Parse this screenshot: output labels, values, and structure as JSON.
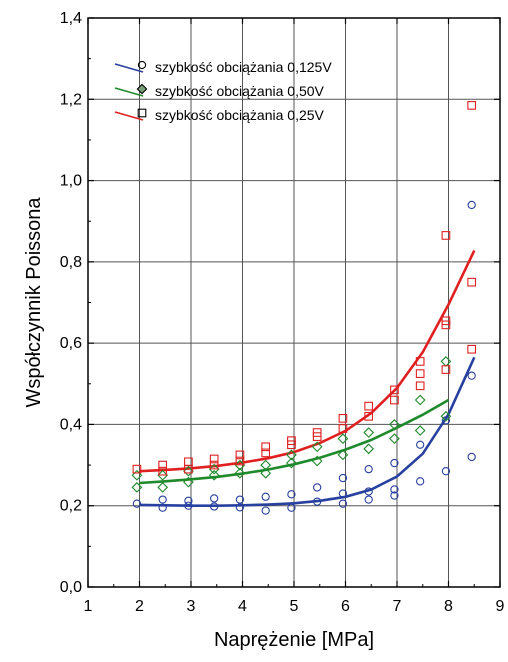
{
  "chart_data": {
    "type": "scatter",
    "xlabel": "Naprężenie [MPa]",
    "ylabel": "Współczynnik Poissona",
    "xlim": [
      1,
      9
    ],
    "ylim": [
      0.0,
      1.4
    ],
    "xticks": [
      1,
      2,
      3,
      4,
      5,
      6,
      7,
      8,
      9
    ],
    "yticks": [
      "0,0",
      "0,2",
      "0,4",
      "0,6",
      "0,8",
      "1,0",
      "1,2",
      "1,4"
    ],
    "ytick_values": [
      0.0,
      0.2,
      0.4,
      0.6,
      0.8,
      1.0,
      1.2,
      1.4
    ],
    "grid": true,
    "legend_position": "top-left",
    "series": [
      {
        "name": "szybkość obciążania 0,125V",
        "color": "#2840a0",
        "marker": "circle",
        "points": [
          [
            1.95,
            0.205
          ],
          [
            2.45,
            0.195
          ],
          [
            2.45,
            0.215
          ],
          [
            2.95,
            0.2
          ],
          [
            2.95,
            0.212
          ],
          [
            3.45,
            0.198
          ],
          [
            3.45,
            0.218
          ],
          [
            3.95,
            0.196
          ],
          [
            3.95,
            0.215
          ],
          [
            4.45,
            0.188
          ],
          [
            4.45,
            0.222
          ],
          [
            4.95,
            0.195
          ],
          [
            4.95,
            0.228
          ],
          [
            5.45,
            0.21
          ],
          [
            5.45,
            0.245
          ],
          [
            5.95,
            0.205
          ],
          [
            5.95,
            0.23
          ],
          [
            5.95,
            0.268
          ],
          [
            6.45,
            0.215
          ],
          [
            6.45,
            0.235
          ],
          [
            6.45,
            0.29
          ],
          [
            6.95,
            0.225
          ],
          [
            6.95,
            0.24
          ],
          [
            6.95,
            0.305
          ],
          [
            7.45,
            0.26
          ],
          [
            7.45,
            0.35
          ],
          [
            7.95,
            0.285
          ],
          [
            7.95,
            0.41
          ],
          [
            8.45,
            0.32
          ],
          [
            8.45,
            0.52
          ],
          [
            8.45,
            0.94
          ]
        ],
        "fit": [
          [
            2.0,
            0.202
          ],
          [
            2.5,
            0.201
          ],
          [
            3.0,
            0.2
          ],
          [
            3.5,
            0.2
          ],
          [
            4.0,
            0.201
          ],
          [
            4.5,
            0.203
          ],
          [
            5.0,
            0.206
          ],
          [
            5.5,
            0.212
          ],
          [
            6.0,
            0.222
          ],
          [
            6.5,
            0.24
          ],
          [
            7.0,
            0.272
          ],
          [
            7.5,
            0.328
          ],
          [
            8.0,
            0.425
          ],
          [
            8.5,
            0.565
          ]
        ]
      },
      {
        "name": "szybkość obciążania 0,50V",
        "color": "#1f8a2c",
        "marker": "diamond",
        "points": [
          [
            1.95,
            0.245
          ],
          [
            1.95,
            0.275
          ],
          [
            2.45,
            0.245
          ],
          [
            2.45,
            0.275
          ],
          [
            2.95,
            0.258
          ],
          [
            2.95,
            0.285
          ],
          [
            3.45,
            0.275
          ],
          [
            3.45,
            0.29
          ],
          [
            3.95,
            0.28
          ],
          [
            3.95,
            0.3
          ],
          [
            4.45,
            0.28
          ],
          [
            4.45,
            0.3
          ],
          [
            4.95,
            0.305
          ],
          [
            4.95,
            0.325
          ],
          [
            5.45,
            0.31
          ],
          [
            5.45,
            0.345
          ],
          [
            5.95,
            0.325
          ],
          [
            5.95,
            0.365
          ],
          [
            6.45,
            0.34
          ],
          [
            6.45,
            0.38
          ],
          [
            6.95,
            0.365
          ],
          [
            6.95,
            0.4
          ],
          [
            7.45,
            0.385
          ],
          [
            7.45,
            0.46
          ],
          [
            7.95,
            0.42
          ],
          [
            7.95,
            0.555
          ]
        ],
        "fit": [
          [
            2.0,
            0.256
          ],
          [
            2.5,
            0.26
          ],
          [
            3.0,
            0.265
          ],
          [
            3.5,
            0.271
          ],
          [
            4.0,
            0.279
          ],
          [
            4.5,
            0.289
          ],
          [
            5.0,
            0.302
          ],
          [
            5.5,
            0.318
          ],
          [
            6.0,
            0.338
          ],
          [
            6.5,
            0.362
          ],
          [
            7.0,
            0.392
          ],
          [
            7.5,
            0.424
          ],
          [
            8.0,
            0.46
          ]
        ]
      },
      {
        "name": "szybkość obciążania 0,25V",
        "color": "#e02020",
        "marker": "square",
        "points": [
          [
            1.95,
            0.29
          ],
          [
            2.45,
            0.285
          ],
          [
            2.45,
            0.3
          ],
          [
            2.95,
            0.29
          ],
          [
            2.95,
            0.308
          ],
          [
            3.45,
            0.3
          ],
          [
            3.45,
            0.315
          ],
          [
            3.95,
            0.31
          ],
          [
            3.95,
            0.325
          ],
          [
            4.45,
            0.33
          ],
          [
            4.45,
            0.345
          ],
          [
            4.95,
            0.35
          ],
          [
            4.95,
            0.36
          ],
          [
            5.45,
            0.37
          ],
          [
            5.45,
            0.38
          ],
          [
            5.95,
            0.39
          ],
          [
            5.95,
            0.415
          ],
          [
            6.45,
            0.42
          ],
          [
            6.45,
            0.445
          ],
          [
            6.95,
            0.46
          ],
          [
            6.95,
            0.485
          ],
          [
            7.45,
            0.495
          ],
          [
            7.45,
            0.525
          ],
          [
            7.45,
            0.555
          ],
          [
            7.95,
            0.535
          ],
          [
            7.95,
            0.645
          ],
          [
            7.95,
            0.655
          ],
          [
            7.95,
            0.865
          ],
          [
            8.45,
            0.585
          ],
          [
            8.45,
            0.75
          ],
          [
            8.45,
            1.185
          ]
        ],
        "fit": [
          [
            2.0,
            0.285
          ],
          [
            2.5,
            0.288
          ],
          [
            3.0,
            0.292
          ],
          [
            3.5,
            0.298
          ],
          [
            4.0,
            0.306
          ],
          [
            4.5,
            0.317
          ],
          [
            5.0,
            0.332
          ],
          [
            5.5,
            0.354
          ],
          [
            6.0,
            0.384
          ],
          [
            6.5,
            0.428
          ],
          [
            7.0,
            0.49
          ],
          [
            7.5,
            0.578
          ],
          [
            8.0,
            0.695
          ],
          [
            8.5,
            0.828
          ]
        ]
      }
    ]
  }
}
